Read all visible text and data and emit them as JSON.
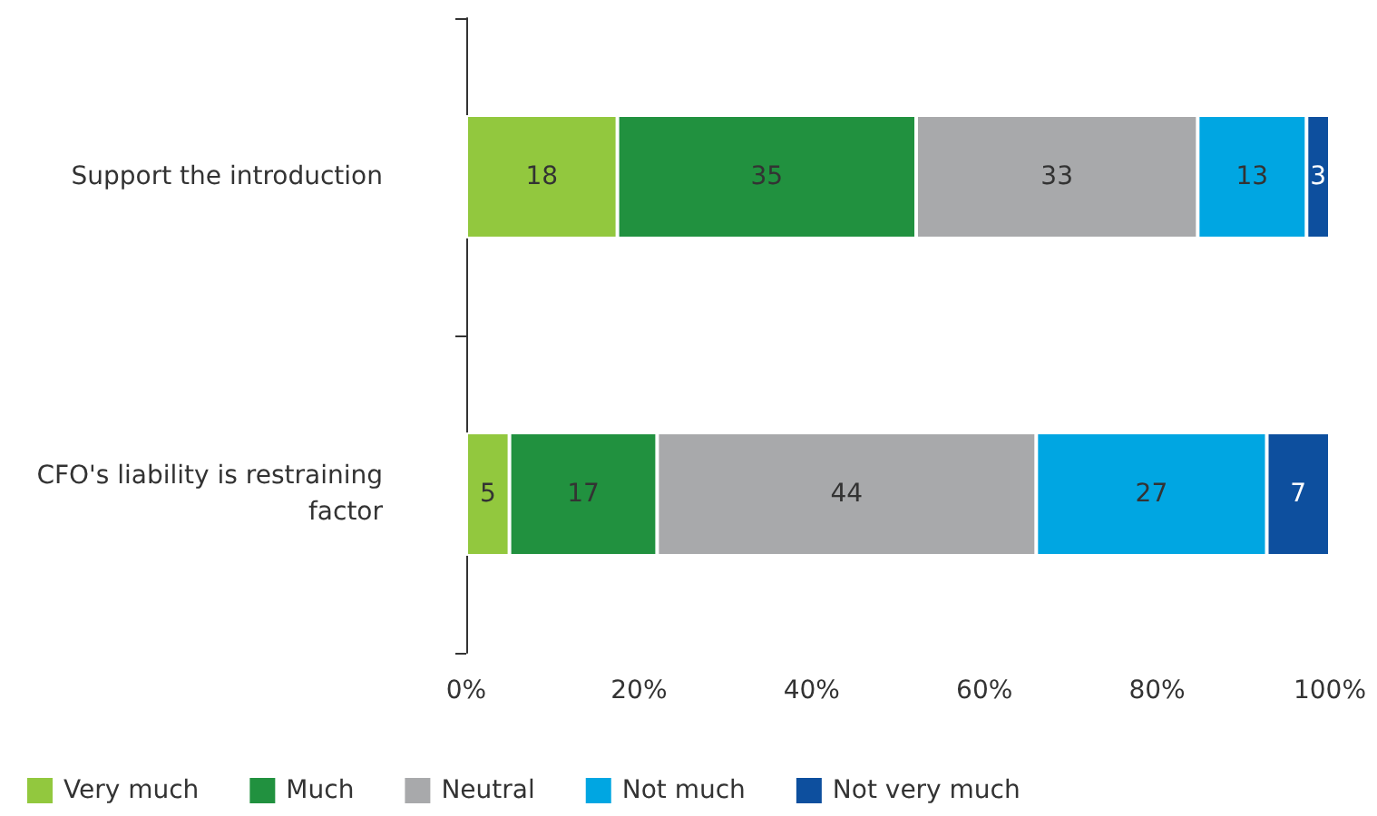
{
  "chart_data": {
    "type": "bar",
    "orientation": "horizontal",
    "stacked": true,
    "categories": [
      "Support the introduction",
      "CFO's liability is restraining factor"
    ],
    "series": [
      {
        "name": "Very much",
        "color": "#92c83e",
        "values": [
          17.5,
          5.0
        ],
        "value_labels": [
          "18",
          "5"
        ]
      },
      {
        "name": "Much",
        "color": "#21913f",
        "values": [
          34.6,
          17.1
        ],
        "value_labels": [
          "35",
          "17"
        ]
      },
      {
        "name": "Neutral",
        "color": "#a8a9ab",
        "values": [
          32.6,
          43.9
        ],
        "value_labels": [
          "33",
          "44"
        ]
      },
      {
        "name": "Not much",
        "color": "#00a6e2",
        "values": [
          12.6,
          26.7
        ],
        "value_labels": [
          "13",
          "27"
        ]
      },
      {
        "name": "Not very much",
        "color": "#0d4f9e",
        "values": [
          2.7,
          7.3
        ],
        "value_labels": [
          "3",
          "7"
        ]
      }
    ],
    "xlim": [
      0,
      100
    ],
    "xticks": [
      {
        "value": 0,
        "label": "0%"
      },
      {
        "value": 20,
        "label": "20%"
      },
      {
        "value": 40,
        "label": "40%"
      },
      {
        "value": 60,
        "label": "60%"
      },
      {
        "value": 80,
        "label": "80%"
      },
      {
        "value": 100,
        "label": "100%"
      }
    ],
    "grid": false,
    "legend": "bottom left"
  }
}
